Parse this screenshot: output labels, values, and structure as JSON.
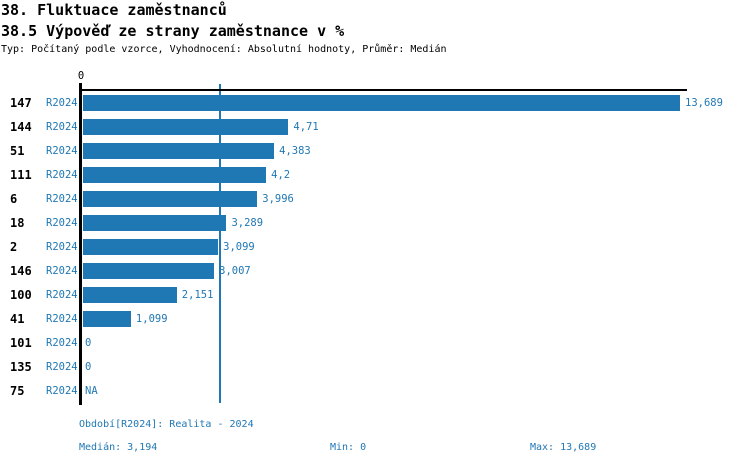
{
  "title": "38. Fluktuace zaměstnanců",
  "subtitle": "38.5 Výpověď ze strany zaměstnance v %",
  "meta_line": "Typ: Počítaný podle vzorce, Vyhodnocení: Absolutní hodnoty, Průměr: Medián",
  "colors": {
    "bar": "#1f77b4",
    "accent_blue": "#1f77b4",
    "axis": "#000000"
  },
  "axis": {
    "zero_label": "0"
  },
  "chart_data": {
    "type": "bar",
    "orientation": "horizontal",
    "title": "38.5 Výpověď ze strany zaměstnance v %",
    "xlabel": "",
    "ylabel": "",
    "xlim": [
      0,
      13.689
    ],
    "x_axis_ticks": [
      "0"
    ],
    "grid": false,
    "median_line_value": 3.194,
    "stats": {
      "median": 3.194,
      "min": 0,
      "max": 13.689
    },
    "rows": [
      {
        "category": "147",
        "period": "R2024",
        "value": 13.689,
        "value_label": "13,689"
      },
      {
        "category": "144",
        "period": "R2024",
        "value": 4.71,
        "value_label": "4,71"
      },
      {
        "category": "51",
        "period": "R2024",
        "value": 4.383,
        "value_label": "4,383"
      },
      {
        "category": "111",
        "period": "R2024",
        "value": 4.2,
        "value_label": "4,2"
      },
      {
        "category": "6",
        "period": "R2024",
        "value": 3.996,
        "value_label": "3,996"
      },
      {
        "category": "18",
        "period": "R2024",
        "value": 3.289,
        "value_label": "3,289"
      },
      {
        "category": "2",
        "period": "R2024",
        "value": 3.099,
        "value_label": "3,099"
      },
      {
        "category": "146",
        "period": "R2024",
        "value": 3.007,
        "value_label": "3,007"
      },
      {
        "category": "100",
        "period": "R2024",
        "value": 2.151,
        "value_label": "2,151"
      },
      {
        "category": "41",
        "period": "R2024",
        "value": 1.099,
        "value_label": "1,099"
      },
      {
        "category": "101",
        "period": "R2024",
        "value": 0,
        "value_label": "0"
      },
      {
        "category": "135",
        "period": "R2024",
        "value": 0,
        "value_label": "0"
      },
      {
        "category": "75",
        "period": "R2024",
        "value": null,
        "value_label": "NA"
      }
    ]
  },
  "footer": {
    "period": "Období[R2024]: Realita - 2024",
    "median": "Medián: 3,194",
    "min": "Min: 0",
    "max": "Max: 13,689"
  }
}
